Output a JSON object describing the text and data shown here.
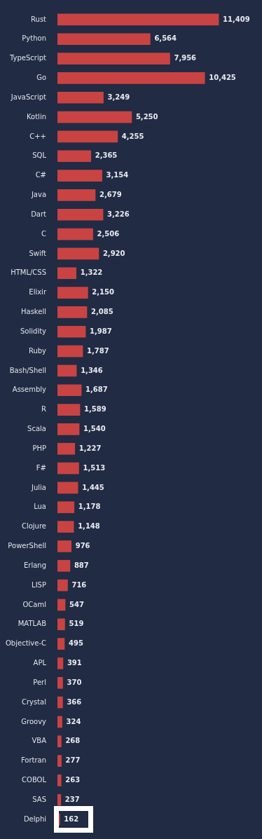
{
  "chart_data": {
    "type": "bar",
    "orientation": "horizontal",
    "color": "#c94343",
    "categories": [
      "Rust",
      "Python",
      "TypeScript",
      "Go",
      "JavaScript",
      "Kotlin",
      "C++",
      "SQL",
      "C#",
      "Java",
      "Dart",
      "C",
      "Swift",
      "HTML/CSS",
      "Elixir",
      "Haskell",
      "Solidity",
      "Ruby",
      "Bash/Shell",
      "Assembly",
      "R",
      "Scala",
      "PHP",
      "F#",
      "Julia",
      "Lua",
      "Clojure",
      "PowerShell",
      "Erlang",
      "LISP",
      "OCaml",
      "MATLAB",
      "Objective-C",
      "APL",
      "Perl",
      "Crystal",
      "Groovy",
      "VBA",
      "Fortran",
      "COBOL",
      "SAS",
      "Delphi"
    ],
    "values": [
      11409,
      6564,
      7956,
      10425,
      3249,
      5250,
      4255,
      2365,
      3154,
      2679,
      3226,
      2506,
      2920,
      1322,
      2150,
      2085,
      1987,
      1787,
      1346,
      1687,
      1589,
      1540,
      1227,
      1513,
      1445,
      1178,
      1148,
      976,
      887,
      716,
      547,
      519,
      495,
      391,
      370,
      366,
      324,
      268,
      277,
      263,
      237,
      162
    ],
    "value_labels": [
      "11,409",
      "6,564",
      "7,956",
      "10,425",
      "3,249",
      "5,250",
      "4,255",
      "2,365",
      "3,154",
      "2,679",
      "3,226",
      "2,506",
      "2,920",
      "1,322",
      "2,150",
      "2,085",
      "1,987",
      "1,787",
      "1,346",
      "1,687",
      "1,589",
      "1,540",
      "1,227",
      "1,513",
      "1,445",
      "1,178",
      "1,148",
      "976",
      "887",
      "716",
      "547",
      "519",
      "495",
      "391",
      "370",
      "366",
      "324",
      "268",
      "277",
      "263",
      "237",
      "162"
    ],
    "tick_labels": "y",
    "legend": false
  }
}
